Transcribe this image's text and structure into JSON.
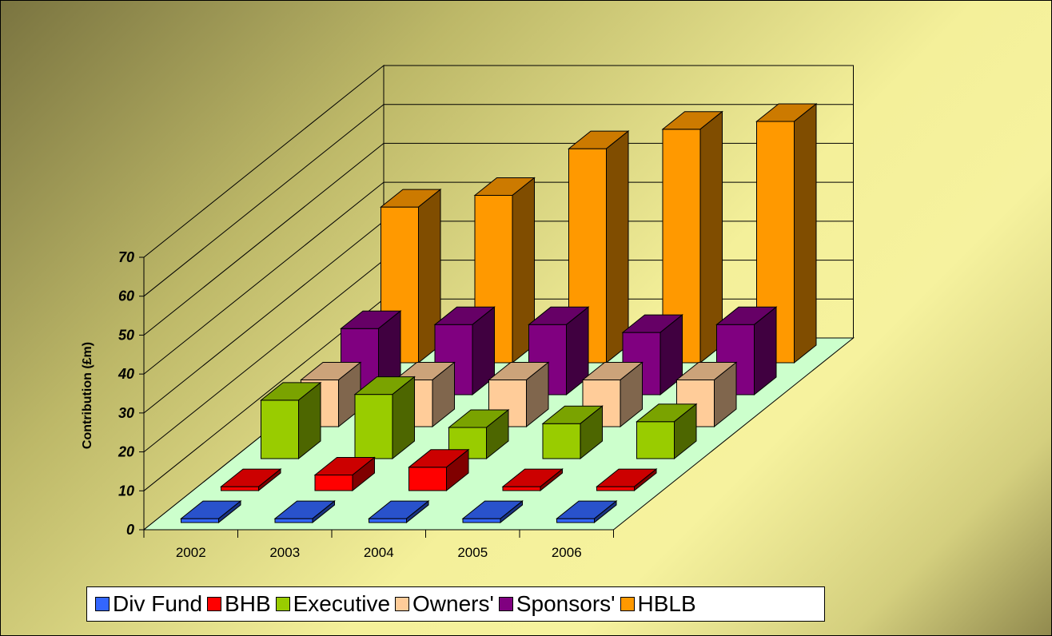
{
  "chart_data": {
    "type": "bar",
    "subtype": "3d-clustered-depth",
    "categories": [
      "2002",
      "2003",
      "2004",
      "2005",
      "2006"
    ],
    "ylabel": "Contribution (£m)",
    "xlabel": "",
    "ylim": [
      0,
      70
    ],
    "yticks": [
      "0",
      "10",
      "20",
      "30",
      "40",
      "50",
      "60",
      "70"
    ],
    "grid": true,
    "legend_position": "bottom",
    "series": [
      {
        "name": "Div Fund",
        "color": "#3366ff",
        "values": [
          1,
          1,
          1,
          1,
          1
        ]
      },
      {
        "name": "BHB",
        "color": "#ff0000",
        "values": [
          1,
          4,
          6,
          1,
          1
        ]
      },
      {
        "name": "Executive",
        "color": "#99cc00",
        "values": [
          15,
          16.5,
          8,
          9,
          9.5
        ]
      },
      {
        "name": "Owners'",
        "color": "#ffcc99",
        "values": [
          12,
          12,
          12,
          12,
          12
        ]
      },
      {
        "name": "Sponsors'",
        "color": "#800080",
        "values": [
          17,
          18,
          18,
          16,
          18
        ]
      },
      {
        "name": "HBLB",
        "color": "#ff9900",
        "values": [
          40,
          43,
          55,
          60,
          62
        ]
      }
    ],
    "floor_color": "#ccffcc"
  },
  "legend": {
    "items": [
      {
        "label": "Div Fund",
        "color": "#3366ff"
      },
      {
        "label": "BHB",
        "color": "#ff0000"
      },
      {
        "label": "Executive",
        "color": "#99cc00"
      },
      {
        "label": "Owners'",
        "color": "#ffcc99"
      },
      {
        "label": "Sponsors'",
        "color": "#800080"
      },
      {
        "label": "HBLB",
        "color": "#ff9900"
      }
    ]
  }
}
